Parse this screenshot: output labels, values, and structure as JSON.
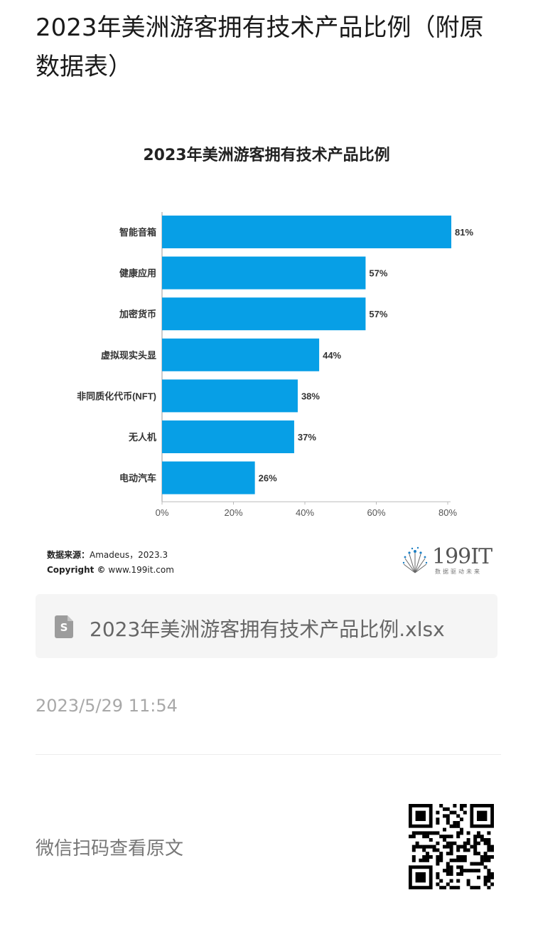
{
  "article": {
    "title": "2023年美洲游客拥有技术产品比例（附原数据表）"
  },
  "chart_data": {
    "type": "bar",
    "orientation": "horizontal",
    "title": "2023年美洲游客拥有技术产品比例",
    "categories": [
      "智能音箱",
      "健康应用",
      "加密货币",
      "虚拟现实头显",
      "非同质化代币(NFT)",
      "无人机",
      "电动汽车"
    ],
    "values": [
      81,
      57,
      57,
      44,
      38,
      37,
      26
    ],
    "value_labels": [
      "81%",
      "57%",
      "57%",
      "44%",
      "38%",
      "37%",
      "26%"
    ],
    "xlim": [
      0,
      80
    ],
    "xticks": [
      "0%",
      "20%",
      "40%",
      "60%",
      "80%"
    ],
    "bar_color": "#079fe6",
    "grid": false
  },
  "source": {
    "label": "数据来源：",
    "value": "Amadeus，2023.3",
    "copyright_label": "Copyright ©",
    "copyright_value": "www.199it.com"
  },
  "brand": {
    "name": "199IT",
    "slogan": "数据驱动未来"
  },
  "attachment": {
    "icon": "spreadsheet-file-icon",
    "icon_letter": "S",
    "file_name": "2023年美洲游客拥有技术产品比例.xlsx"
  },
  "timestamp": "2023/5/29 11:54",
  "footer": {
    "scan_text": "微信扫码查看原文",
    "qr_icon": "qr-code-icon"
  }
}
